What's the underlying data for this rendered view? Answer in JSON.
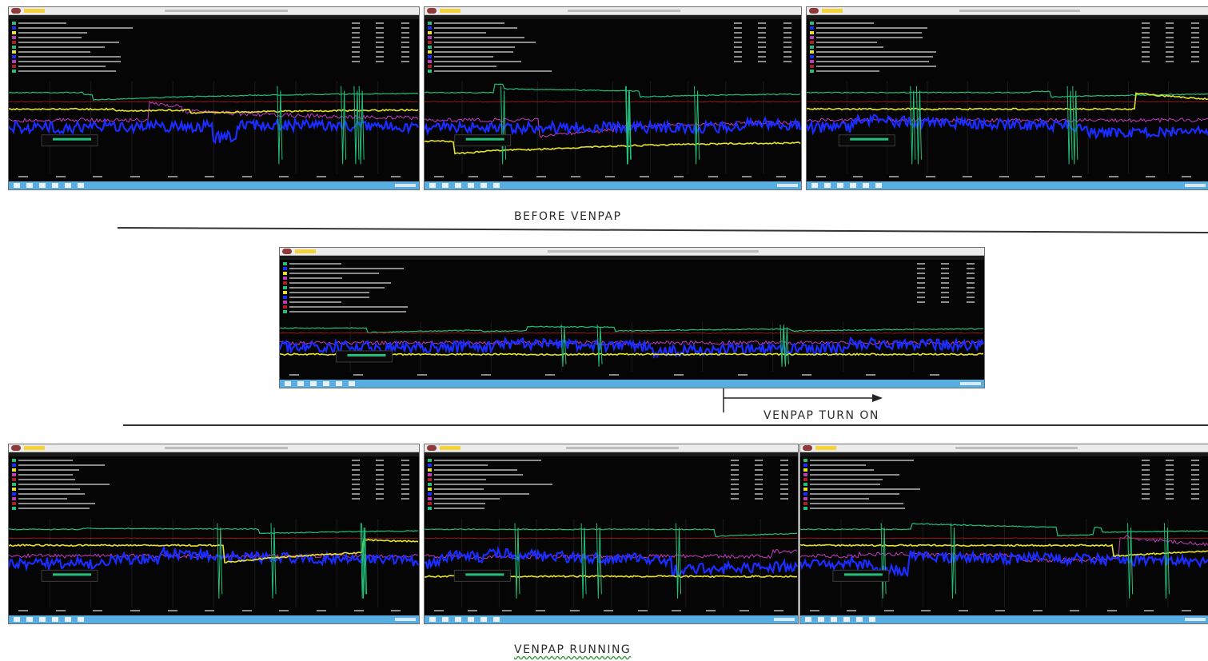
{
  "labels": {
    "before": "BEFORE VENPAP",
    "turn_on": "VENPAP TURN ON",
    "running": "VENPAP  RUNNING"
  },
  "colors": {
    "green": "#22c07a",
    "yellow": "#e6e22a",
    "blue": "#1a2cff",
    "magenta": "#c23bbd",
    "red": "#b01e1e",
    "taskbar": "#57aee3"
  },
  "screenshots": [
    {
      "id": "before-1",
      "group": "before"
    },
    {
      "id": "before-2",
      "group": "before"
    },
    {
      "id": "before-3",
      "group": "before"
    },
    {
      "id": "turn-on",
      "group": "turn_on"
    },
    {
      "id": "running-1",
      "group": "running"
    },
    {
      "id": "running-2",
      "group": "running"
    },
    {
      "id": "running-3",
      "group": "running"
    }
  ]
}
